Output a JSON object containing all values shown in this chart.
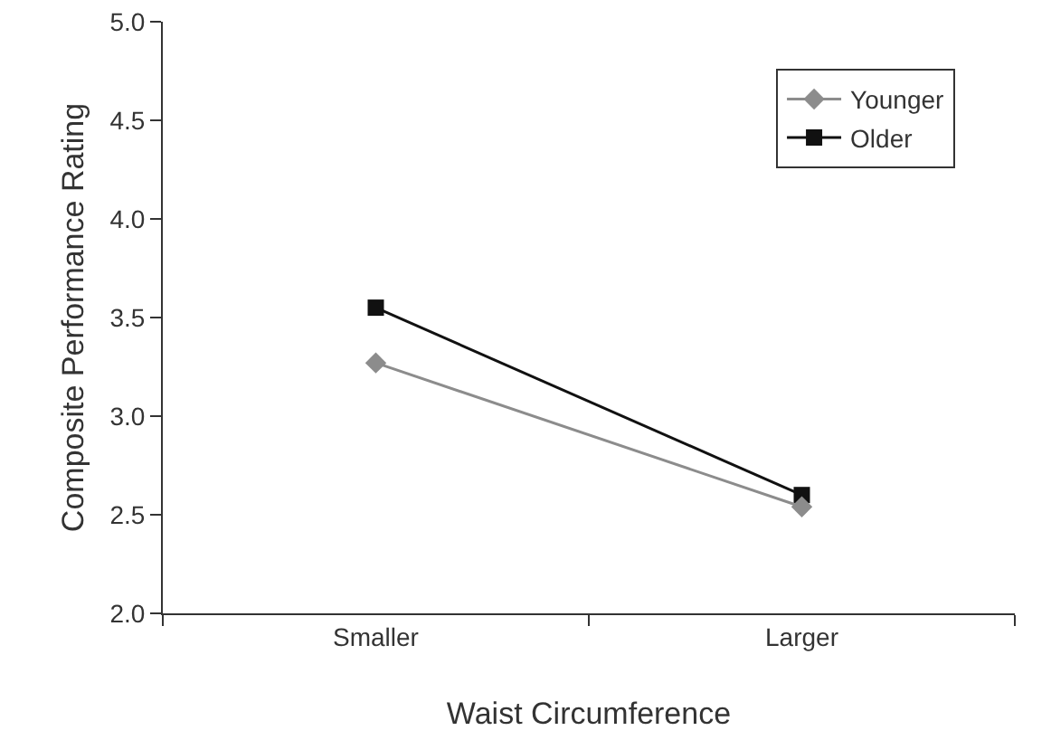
{
  "chart_data": {
    "type": "line",
    "xlabel": "Waist Circumference",
    "ylabel": "Composite Performance Rating",
    "categories": [
      "Smaller",
      "Larger"
    ],
    "series": [
      {
        "name": "Younger",
        "color": "#8c8c8c",
        "marker": "diamond",
        "values": [
          3.27,
          2.54
        ]
      },
      {
        "name": "Older",
        "color": "#111111",
        "marker": "square",
        "values": [
          3.55,
          2.6
        ]
      }
    ],
    "ylim": [
      2.0,
      5.0
    ],
    "yticks": [
      {
        "value": 2,
        "label": "2.0"
      },
      {
        "value": 2.5,
        "label": "2.5"
      },
      {
        "value": 3,
        "label": "3.0"
      },
      {
        "value": 3.5,
        "label": "3.5"
      },
      {
        "value": 4,
        "label": "4.0"
      },
      {
        "value": 4.5,
        "label": "4.5"
      },
      {
        "value": 5,
        "label": "5.0"
      }
    ],
    "grid": false,
    "legend": "top right",
    "line_style": "solid"
  }
}
